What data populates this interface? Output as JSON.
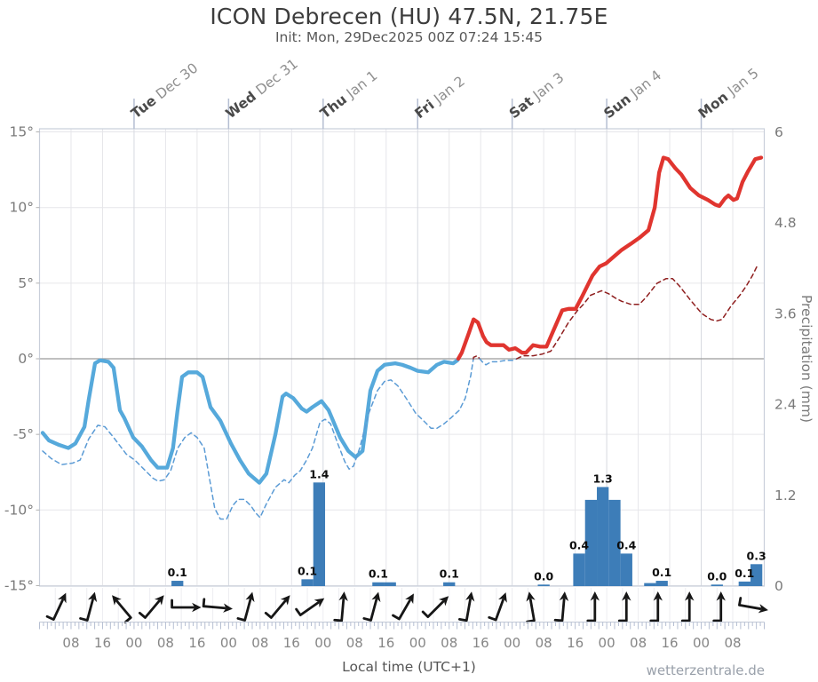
{
  "title": "ICON Debrecen (HU) 47.5N, 21.75E",
  "subtitle": "Init: Mon, 29Dec2025 00Z 07:24 15:45",
  "watermark": "wetterzentrale.de",
  "colors": {
    "temp_above": "#e0352f",
    "temp_below": "#56a9db",
    "dew_above": "#8f1f1f",
    "dew_below": "#5b9bd5",
    "precip_bar": "#3d7db8",
    "grid": "#e6e6ea",
    "grid_day": "#d6d9e0",
    "zero_line": "#9a9a9a",
    "border": "#c9cfda",
    "day_tick": "#b5bed2",
    "comb": "#b6bfd2",
    "arrow": "#161616",
    "axis_text": "#7a7a7a",
    "hour_text": "#868686",
    "bar_label": "#0d0d0d",
    "day_name": "#4a4a4a",
    "day_date": "#8f8f8f"
  },
  "chart_data": {
    "type": "line",
    "title": "ICON Debrecen (HU) 47.5N, 21.75E",
    "x_axis": {
      "label": "Local time (UTC+1)",
      "hours_from": "Mon Dec 29 00:00 local",
      "t_min": 0,
      "t_max": 184,
      "grid": true,
      "hour_labels": [
        {
          "t": 8,
          "text": "08"
        },
        {
          "t": 16,
          "text": "16"
        },
        {
          "t": 24,
          "text": "00"
        },
        {
          "t": 32,
          "text": "08"
        },
        {
          "t": 40,
          "text": "16"
        },
        {
          "t": 48,
          "text": "00"
        },
        {
          "t": 56,
          "text": "08"
        },
        {
          "t": 64,
          "text": "16"
        },
        {
          "t": 72,
          "text": "00"
        },
        {
          "t": 80,
          "text": "08"
        },
        {
          "t": 88,
          "text": "16"
        },
        {
          "t": 96,
          "text": "00"
        },
        {
          "t": 104,
          "text": "08"
        },
        {
          "t": 112,
          "text": "16"
        },
        {
          "t": 120,
          "text": "00"
        },
        {
          "t": 128,
          "text": "08"
        },
        {
          "t": 136,
          "text": "16"
        },
        {
          "t": 144,
          "text": "00"
        },
        {
          "t": 152,
          "text": "08"
        },
        {
          "t": 160,
          "text": "16"
        },
        {
          "t": 168,
          "text": "00"
        },
        {
          "t": 176,
          "text": "08"
        }
      ],
      "day_labels": [
        {
          "t": 24,
          "day": "Tue",
          "date": "Dec 30"
        },
        {
          "t": 48,
          "day": "Wed",
          "date": "Dec 31"
        },
        {
          "t": 72,
          "day": "Thu",
          "date": "Jan 1"
        },
        {
          "t": 96,
          "day": "Fri",
          "date": "Jan 2"
        },
        {
          "t": 120,
          "day": "Sat",
          "date": "Jan 3"
        },
        {
          "t": 144,
          "day": "Sun",
          "date": "Jan 4"
        },
        {
          "t": 168,
          "day": "Mon",
          "date": "Jan 5"
        }
      ]
    },
    "y_left": {
      "labels": [
        "15°",
        "10°",
        "5°",
        "0°",
        "-5°",
        "-10°",
        "-15°"
      ],
      "values": [
        15,
        10,
        5,
        0,
        -5,
        -10,
        -15
      ],
      "min": -15,
      "max": 15
    },
    "y_right": {
      "label": "Precipitation (mm)",
      "labels": [
        "6",
        "4.8",
        "3.6",
        "2.4",
        "1.2",
        "0"
      ],
      "values": [
        6,
        4.8,
        3.6,
        2.4,
        1.2,
        0
      ],
      "min": 0,
      "max": 6
    },
    "series": [
      {
        "name": "temperature_2m",
        "style": "solid",
        "points": [
          [
            0.8,
            -4.9
          ],
          [
            2.4,
            -5.4
          ],
          [
            5,
            -5.7
          ],
          [
            7.3,
            -5.9
          ],
          [
            9.1,
            -5.6
          ],
          [
            11.4,
            -4.5
          ],
          [
            12.5,
            -2.7
          ],
          [
            14.1,
            -0.3
          ],
          [
            15.4,
            -0.1
          ],
          [
            17.5,
            -0.2
          ],
          [
            18.8,
            -0.6
          ],
          [
            20.4,
            -3.4
          ],
          [
            21.5,
            -3.9
          ],
          [
            23.8,
            -5.2
          ],
          [
            26,
            -5.8
          ],
          [
            28.3,
            -6.7
          ],
          [
            30,
            -7.2
          ],
          [
            32.4,
            -7.2
          ],
          [
            33.9,
            -5.9
          ],
          [
            35,
            -3.5
          ],
          [
            36.2,
            -1.2
          ],
          [
            37.8,
            -0.9
          ],
          [
            40,
            -0.9
          ],
          [
            41.4,
            -1.2
          ],
          [
            43.4,
            -3.2
          ],
          [
            45.9,
            -4.1
          ],
          [
            48.6,
            -5.6
          ],
          [
            50.9,
            -6.7
          ],
          [
            53.1,
            -7.6
          ],
          [
            55.8,
            -8.2
          ],
          [
            57.6,
            -7.6
          ],
          [
            59.9,
            -5.0
          ],
          [
            61.7,
            -2.5
          ],
          [
            62.6,
            -2.3
          ],
          [
            64.4,
            -2.6
          ],
          [
            66.6,
            -3.3
          ],
          [
            67.8,
            -3.5
          ],
          [
            69.3,
            -3.2
          ],
          [
            71.6,
            -2.8
          ],
          [
            73.4,
            -3.4
          ],
          [
            76.3,
            -5.2
          ],
          [
            78.4,
            -6.1
          ],
          [
            80.2,
            -6.5
          ],
          [
            82,
            -6.1
          ],
          [
            84,
            -2.1
          ],
          [
            85.8,
            -0.8
          ],
          [
            87.6,
            -0.4
          ],
          [
            90.3,
            -0.3
          ],
          [
            92.1,
            -0.4
          ],
          [
            94.2,
            -0.6
          ],
          [
            96,
            -0.8
          ],
          [
            98.7,
            -0.9
          ],
          [
            100.9,
            -0.4
          ],
          [
            102.7,
            -0.2
          ],
          [
            105,
            -0.3
          ],
          [
            106.1,
            -0.1
          ],
          [
            107.2,
            0.4
          ],
          [
            109,
            1.7
          ],
          [
            110.2,
            2.6
          ],
          [
            111.3,
            2.4
          ],
          [
            112.6,
            1.5
          ],
          [
            113.5,
            1.1
          ],
          [
            114.6,
            0.9
          ],
          [
            117.8,
            0.9
          ],
          [
            119.2,
            0.6
          ],
          [
            120.8,
            0.7
          ],
          [
            122.5,
            0.4
          ],
          [
            123.5,
            0.4
          ],
          [
            125.3,
            0.9
          ],
          [
            127.1,
            0.8
          ],
          [
            128.7,
            0.8
          ],
          [
            130.2,
            1.7
          ],
          [
            132.7,
            3.2
          ],
          [
            134.3,
            3.3
          ],
          [
            136.1,
            3.3
          ],
          [
            137.7,
            4.1
          ],
          [
            140.4,
            5.5
          ],
          [
            142.2,
            6.1
          ],
          [
            143.8,
            6.3
          ],
          [
            146,
            6.8
          ],
          [
            147.8,
            7.2
          ],
          [
            150.1,
            7.6
          ],
          [
            152.3,
            8.0
          ],
          [
            154.6,
            8.5
          ],
          [
            156.2,
            10.0
          ],
          [
            157.3,
            12.3
          ],
          [
            158.4,
            13.3
          ],
          [
            159.6,
            13.2
          ],
          [
            161.4,
            12.6
          ],
          [
            162.9,
            12.2
          ],
          [
            165.2,
            11.3
          ],
          [
            167.4,
            10.8
          ],
          [
            169.7,
            10.5
          ],
          [
            171.5,
            10.2
          ],
          [
            172.6,
            10.1
          ],
          [
            174,
            10.6
          ],
          [
            174.9,
            10.8
          ],
          [
            176.2,
            10.5
          ],
          [
            177.1,
            10.6
          ],
          [
            178.5,
            11.7
          ],
          [
            179.9,
            12.4
          ],
          [
            181.7,
            13.2
          ],
          [
            183.2,
            13.3
          ]
        ]
      },
      {
        "name": "dew_point",
        "style": "dashed",
        "points": [
          [
            0.8,
            -6.1
          ],
          [
            3,
            -6.6
          ],
          [
            5.6,
            -7.0
          ],
          [
            8.4,
            -6.9
          ],
          [
            10.3,
            -6.7
          ],
          [
            12.5,
            -5.3
          ],
          [
            14.8,
            -4.4
          ],
          [
            16.6,
            -4.5
          ],
          [
            18.8,
            -5.2
          ],
          [
            22,
            -6.3
          ],
          [
            24.2,
            -6.7
          ],
          [
            26.5,
            -7.3
          ],
          [
            28.8,
            -7.9
          ],
          [
            30.1,
            -8.1
          ],
          [
            31.7,
            -8.0
          ],
          [
            33.3,
            -7.4
          ],
          [
            35.1,
            -5.9
          ],
          [
            36.9,
            -5.2
          ],
          [
            38.5,
            -4.9
          ],
          [
            40,
            -5.2
          ],
          [
            41.8,
            -5.9
          ],
          [
            43.6,
            -8.6
          ],
          [
            44.5,
            -9.9
          ],
          [
            45.9,
            -10.6
          ],
          [
            47.5,
            -10.6
          ],
          [
            49.1,
            -9.7
          ],
          [
            50.4,
            -9.3
          ],
          [
            52,
            -9.3
          ],
          [
            53.6,
            -9.7
          ],
          [
            54.9,
            -10.2
          ],
          [
            56,
            -10.5
          ],
          [
            57.6,
            -9.6
          ],
          [
            59.9,
            -8.5
          ],
          [
            62.1,
            -8.0
          ],
          [
            63.3,
            -8.2
          ],
          [
            64.8,
            -7.7
          ],
          [
            66.2,
            -7.4
          ],
          [
            67.8,
            -6.7
          ],
          [
            69.3,
            -5.9
          ],
          [
            71.2,
            -4.2
          ],
          [
            72.5,
            -4.0
          ],
          [
            73.9,
            -4.3
          ],
          [
            75.7,
            -5.6
          ],
          [
            77.5,
            -6.8
          ],
          [
            78.6,
            -7.3
          ],
          [
            79.7,
            -7.1
          ],
          [
            81.3,
            -5.9
          ],
          [
            83.6,
            -3.6
          ],
          [
            85.8,
            -2.1
          ],
          [
            87.6,
            -1.5
          ],
          [
            89.2,
            -1.4
          ],
          [
            91,
            -1.8
          ],
          [
            93.3,
            -2.7
          ],
          [
            95.5,
            -3.6
          ],
          [
            97.5,
            -4.1
          ],
          [
            99.4,
            -4.6
          ],
          [
            100.9,
            -4.6
          ],
          [
            102.7,
            -4.3
          ],
          [
            104.5,
            -3.9
          ],
          [
            106.6,
            -3.4
          ],
          [
            108.1,
            -2.6
          ],
          [
            109.5,
            -1.1
          ],
          [
            110.2,
            0.1
          ],
          [
            111.1,
            0.2
          ],
          [
            112.4,
            -0.2
          ],
          [
            113.3,
            -0.4
          ],
          [
            114.7,
            -0.2
          ],
          [
            116.2,
            -0.2
          ],
          [
            118.5,
            -0.1
          ],
          [
            120.4,
            -0.1
          ],
          [
            121.9,
            0.1
          ],
          [
            123,
            0.2
          ],
          [
            125.3,
            0.2
          ],
          [
            127.5,
            0.3
          ],
          [
            129.8,
            0.5
          ],
          [
            132,
            1.4
          ],
          [
            134.3,
            2.4
          ],
          [
            136.6,
            3.2
          ],
          [
            138.1,
            3.6
          ],
          [
            139.9,
            4.2
          ],
          [
            142.7,
            4.5
          ],
          [
            144.5,
            4.3
          ],
          [
            146.3,
            4.0
          ],
          [
            147.8,
            3.8
          ],
          [
            150.1,
            3.6
          ],
          [
            152.3,
            3.6
          ],
          [
            154.1,
            4.1
          ],
          [
            156.8,
            5.0
          ],
          [
            159.1,
            5.3
          ],
          [
            160.7,
            5.3
          ],
          [
            162.5,
            4.8
          ],
          [
            165.2,
            3.9
          ],
          [
            168.1,
            3.0
          ],
          [
            170.4,
            2.6
          ],
          [
            171.9,
            2.5
          ],
          [
            173.3,
            2.6
          ],
          [
            175.6,
            3.5
          ],
          [
            177.8,
            4.2
          ],
          [
            179.4,
            4.8
          ],
          [
            181,
            5.5
          ],
          [
            182.3,
            6.2
          ]
        ]
      }
    ],
    "precipitation_bars": [
      {
        "t": 33.5,
        "mm": 0.07,
        "label": "0.1"
      },
      {
        "t": 66.5,
        "mm": 0.09,
        "label": "0.1"
      },
      {
        "t": 69.5,
        "mm": 1.37,
        "label": "1.4"
      },
      {
        "t": 84.5,
        "mm": 0.05,
        "label": "0.1"
      },
      {
        "t": 87.5,
        "mm": 0.05,
        "label": null
      },
      {
        "t": 102.5,
        "mm": 0.05,
        "label": "0.1"
      },
      {
        "t": 126.5,
        "mm": 0.02,
        "label": "0.0"
      },
      {
        "t": 135.5,
        "mm": 0.43,
        "label": "0.4"
      },
      {
        "t": 138.5,
        "mm": 1.14,
        "label": null
      },
      {
        "t": 141.5,
        "mm": 1.31,
        "label": "1.3"
      },
      {
        "t": 144.5,
        "mm": 1.14,
        "label": null
      },
      {
        "t": 147.5,
        "mm": 0.43,
        "label": "0.4"
      },
      {
        "t": 153.5,
        "mm": 0.04,
        "label": null
      },
      {
        "t": 156.5,
        "mm": 0.07,
        "label": "0.1"
      },
      {
        "t": 170.5,
        "mm": 0.02,
        "label": "0.0"
      },
      {
        "t": 177.5,
        "mm": 0.06,
        "label": "0.1"
      },
      {
        "t": 180.5,
        "mm": 0.29,
        "label": "0.3"
      }
    ],
    "wind_arrows": [
      {
        "t": 5,
        "dir": 25
      },
      {
        "t": 13,
        "dir": 15
      },
      {
        "t": 21,
        "dir": -40
      },
      {
        "t": 29,
        "dir": 40
      },
      {
        "t": 37,
        "dir": 90
      },
      {
        "t": 45,
        "dir": 95
      },
      {
        "t": 53,
        "dir": 15
      },
      {
        "t": 61,
        "dir": 40
      },
      {
        "t": 69,
        "dir": 55
      },
      {
        "t": 77,
        "dir": 5
      },
      {
        "t": 85,
        "dir": 15
      },
      {
        "t": 93,
        "dir": 30
      },
      {
        "t": 101,
        "dir": 45
      },
      {
        "t": 109,
        "dir": 10
      },
      {
        "t": 117,
        "dir": 20
      },
      {
        "t": 125,
        "dir": -10
      },
      {
        "t": 133,
        "dir": 5
      },
      {
        "t": 141,
        "dir": 0
      },
      {
        "t": 149,
        "dir": 0
      },
      {
        "t": 157,
        "dir": 0
      },
      {
        "t": 165,
        "dir": 0
      },
      {
        "t": 173,
        "dir": 0
      },
      {
        "t": 181,
        "dir": 100
      }
    ]
  }
}
